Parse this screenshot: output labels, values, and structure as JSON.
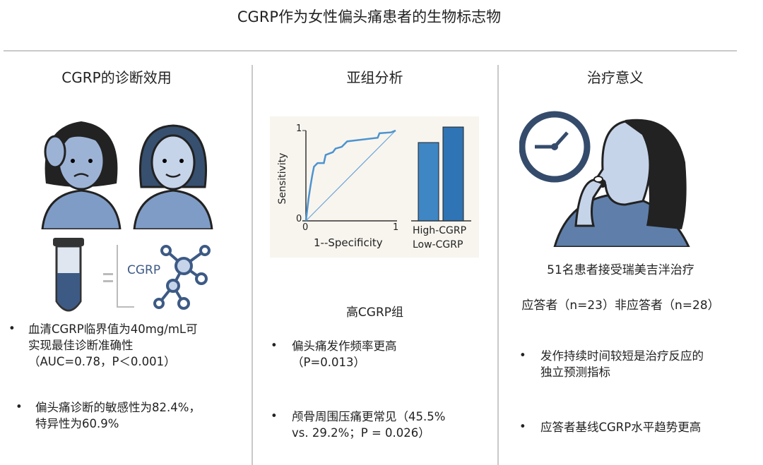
{
  "title": "CGRP作为女性偏头痛患者的生物标志物",
  "col1": {
    "heading": "CGRP的诊断效用",
    "molecule_label": "CGRP",
    "bullets": [
      {
        "lines": [
          "血清CGRP临界值为40mg/mL可",
          "实现最佳诊断准确性",
          "（AUC=0.78，P＜0.001）"
        ]
      },
      {
        "lines": [
          "偏头痛诊断的敏感性为82.4%，",
          "特异性为60.9%"
        ]
      }
    ]
  },
  "col2": {
    "heading": "亚组分析",
    "figure": {
      "ylabel": "Sensitivity",
      "xlabel": "1--Specificity",
      "y_ticks": [
        "0",
        "1"
      ],
      "x_ticks": [
        "0",
        "1"
      ],
      "bar_labels": [
        "High-CGRP",
        "Low-CGRP"
      ]
    },
    "group_label": "高CGRP组",
    "bullets": [
      {
        "lines": [
          "偏头痛发作频率更高",
          "（P=0.013）"
        ]
      },
      {
        "lines": [
          "颅骨周围压痛更常见（45.5%",
          "vs. 29.2%；P = 0.026）"
        ]
      }
    ]
  },
  "col3": {
    "heading": "治疗意义",
    "patients": "51名患者接受瑞美吉泮治疗",
    "groups": "应答者（n=23）非应答者（n=28）",
    "bullets": [
      {
        "lines": [
          "发作持续时间较短是治疗反应的",
          "独立预测指标"
        ]
      },
      {
        "lines": [
          "应答者基线CGRP水平趋势更高"
        ]
      }
    ]
  },
  "colors": {
    "accent": "#3b7fc0",
    "figure_fill": "#6b89b6",
    "divider": "#c9c9c9"
  }
}
